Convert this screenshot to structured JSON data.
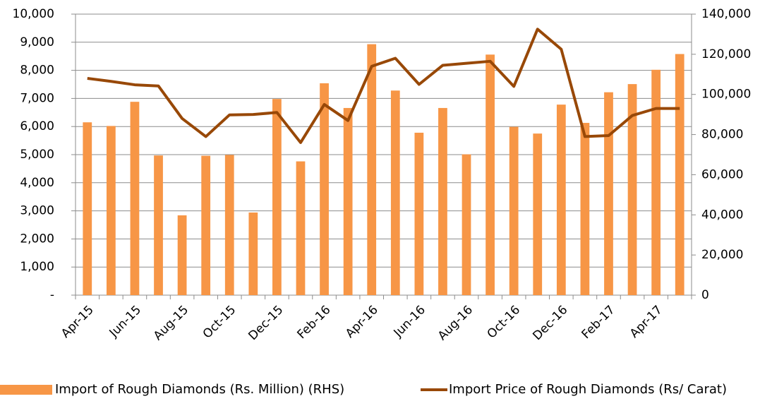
{
  "chart_data": {
    "type": "bar_line",
    "categories": [
      "Apr-15",
      null,
      "Jun-15",
      null,
      "Aug-15",
      null,
      "Oct-15",
      null,
      "Dec-15",
      null,
      "Feb-16",
      null,
      "Apr-16",
      null,
      "Jun-16",
      null,
      "Aug-16",
      null,
      "Oct-16",
      null,
      "Dec-16",
      null,
      "Feb-17",
      null,
      "Apr-17",
      null
    ],
    "series": [
      {
        "name": "Import of Rough Diamonds (Rs. Million) (RHS)",
        "type": "bar",
        "axis": "y",
        "color": "#f79646",
        "values": [
          6150,
          6020,
          6880,
          4970,
          2840,
          4960,
          4990,
          2940,
          6980,
          4760,
          7540,
          6660,
          8930,
          7280,
          5780,
          6660,
          5010,
          8560,
          5990,
          5750,
          6780,
          6130,
          7220,
          7510,
          8020,
          8580
        ]
      },
      {
        "name": "Import Price of Rough Diamonds (Rs/ Carat)",
        "type": "line",
        "axis": "y2",
        "color": "#984807",
        "values": [
          108000,
          106500,
          104800,
          104200,
          88000,
          79000,
          89800,
          90000,
          91000,
          76000,
          95000,
          87000,
          114000,
          118000,
          105000,
          114500,
          115500,
          116500,
          104000,
          132500,
          122500,
          79000,
          79500,
          89500,
          93000,
          93000
        ]
      }
    ],
    "ylim": [
      0,
      10000
    ],
    "yticks": [
      {
        "value": 0,
        "label": "-"
      },
      {
        "value": 1000,
        "label": "1,000"
      },
      {
        "value": 2000,
        "label": "2,000"
      },
      {
        "value": 3000,
        "label": "3,000"
      },
      {
        "value": 4000,
        "label": "4,000"
      },
      {
        "value": 5000,
        "label": "5,000"
      },
      {
        "value": 6000,
        "label": "6,000"
      },
      {
        "value": 7000,
        "label": "7,000"
      },
      {
        "value": 8000,
        "label": "8,000"
      },
      {
        "value": 9000,
        "label": "9,000"
      },
      {
        "value": 10000,
        "label": "10,000"
      }
    ],
    "y2lim": [
      0,
      140000
    ],
    "y2ticks": [
      0,
      {
        "value": 20000,
        "label": "20,000"
      },
      {
        "value": 40000,
        "label": "40,000"
      },
      {
        "value": 60000,
        "label": "60,000"
      },
      {
        "value": 80000,
        "label": "80,000"
      },
      {
        "value": 100000,
        "label": "100,000"
      },
      {
        "value": 120000,
        "label": "120,000"
      },
      {
        "value": 140000,
        "label": "140,000"
      }
    ],
    "grid": true,
    "legend": "bottom"
  }
}
